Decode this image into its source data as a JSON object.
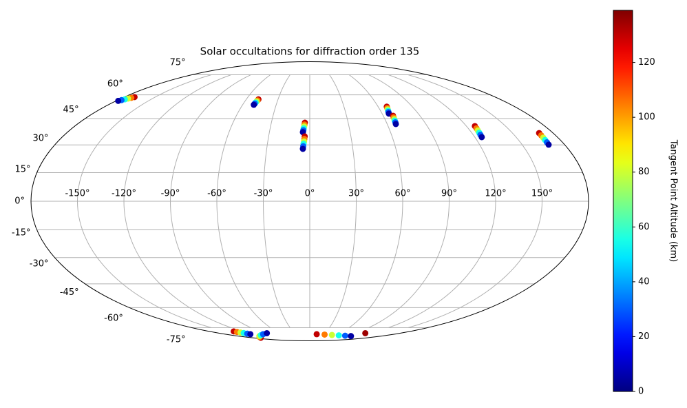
{
  "chart_data": {
    "type": "scatter",
    "projection": "mollweide",
    "title": "Solar occultations for diffraction order 135",
    "x": [
      -170,
      -171.6,
      -173.2,
      -174.8,
      -176.4,
      -178,
      -48.5,
      -48.8,
      -49.1,
      -49.4,
      -49.7,
      -50,
      -3.8,
      -4.1,
      -4.3,
      -4.6,
      -4.8,
      -5.1,
      -3.7,
      -3.9,
      -4.1,
      -4.4,
      -4.6,
      -4.8,
      67.6,
      67.2,
      66.8,
      66.4,
      66,
      65.6,
      68,
      67.7,
      67.5,
      67.2,
      67,
      66.7,
      126.5,
      126.2,
      125.9,
      125.6,
      125.3,
      125,
      169.7,
      169.5,
      169.3,
      169.1,
      168.9,
      168.7,
      -136,
      -134,
      -132,
      -130,
      -128,
      -126,
      -153,
      -139,
      -126,
      -112,
      -99,
      -85,
      14.7,
      32.4,
      50,
      67.7,
      85.3,
      103,
      110
    ],
    "y": [
      58.5,
      58,
      57.5,
      57,
      56.5,
      56,
      57,
      56.3,
      55.6,
      54.9,
      54.2,
      53.5,
      42.6,
      41.5,
      40.4,
      39.3,
      38.2,
      37.1,
      34.7,
      33.3,
      31.9,
      30.6,
      29.2,
      27.8,
      52.3,
      51.4,
      50.6,
      49.7,
      48.9,
      48,
      46.7,
      45.7,
      44.7,
      43.8,
      42.8,
      41.8,
      40.6,
      39.3,
      38.1,
      36.8,
      35.6,
      34.3,
      36.6,
      35.3,
      34,
      32.7,
      31.4,
      30.1,
      -78.3,
      -78.8,
      -79.4,
      -79.9,
      -80.5,
      -81,
      -85,
      -84,
      -83,
      -82,
      -81,
      -80,
      -81,
      -81.4,
      -81.8,
      -82.2,
      -82.6,
      -83,
      -80
    ],
    "c": [
      130,
      105,
      80,
      55,
      30,
      5,
      130,
      105,
      80,
      55,
      30,
      5,
      130,
      105,
      80,
      55,
      30,
      5,
      130,
      105,
      80,
      55,
      30,
      5,
      130,
      105,
      80,
      55,
      30,
      5,
      130,
      105,
      80,
      55,
      30,
      5,
      130,
      105,
      80,
      55,
      30,
      5,
      130,
      105,
      80,
      55,
      30,
      5,
      130,
      105,
      80,
      55,
      30,
      5,
      130,
      105,
      80,
      55,
      30,
      5,
      130,
      105,
      80,
      55,
      30,
      5,
      135
    ],
    "cmap": "jet",
    "clim": [
      0,
      139
    ],
    "colorbar": {
      "label": "Tangent Point Altitude (km)",
      "ticks": [
        0,
        20,
        40,
        60,
        80,
        100,
        120
      ]
    },
    "xlim": [
      -180,
      180
    ],
    "ylim": [
      -90,
      90
    ],
    "xticks": [
      {
        "value": -150,
        "label": "-150°"
      },
      {
        "value": -120,
        "label": "-120°"
      },
      {
        "value": -90,
        "label": "-90°"
      },
      {
        "value": -60,
        "label": "-60°"
      },
      {
        "value": -30,
        "label": "-30°"
      },
      {
        "value": 0,
        "label": "0°"
      },
      {
        "value": 30,
        "label": "30°"
      },
      {
        "value": 60,
        "label": "60°"
      },
      {
        "value": 90,
        "label": "90°"
      },
      {
        "value": 120,
        "label": "120°"
      },
      {
        "value": 150,
        "label": "150°"
      }
    ],
    "yticks": [
      {
        "value": -75,
        "label": "-75°"
      },
      {
        "value": -60,
        "label": "-60°"
      },
      {
        "value": -45,
        "label": "-45°"
      },
      {
        "value": -30,
        "label": "-30°"
      },
      {
        "value": -15,
        "label": "-15°"
      },
      {
        "value": 0,
        "label": "0°"
      },
      {
        "value": 15,
        "label": "15°"
      },
      {
        "value": 30,
        "label": "30°"
      },
      {
        "value": 45,
        "label": "45°"
      },
      {
        "value": 60,
        "label": "60°"
      },
      {
        "value": 75,
        "label": "75°"
      }
    ],
    "grid": true
  }
}
